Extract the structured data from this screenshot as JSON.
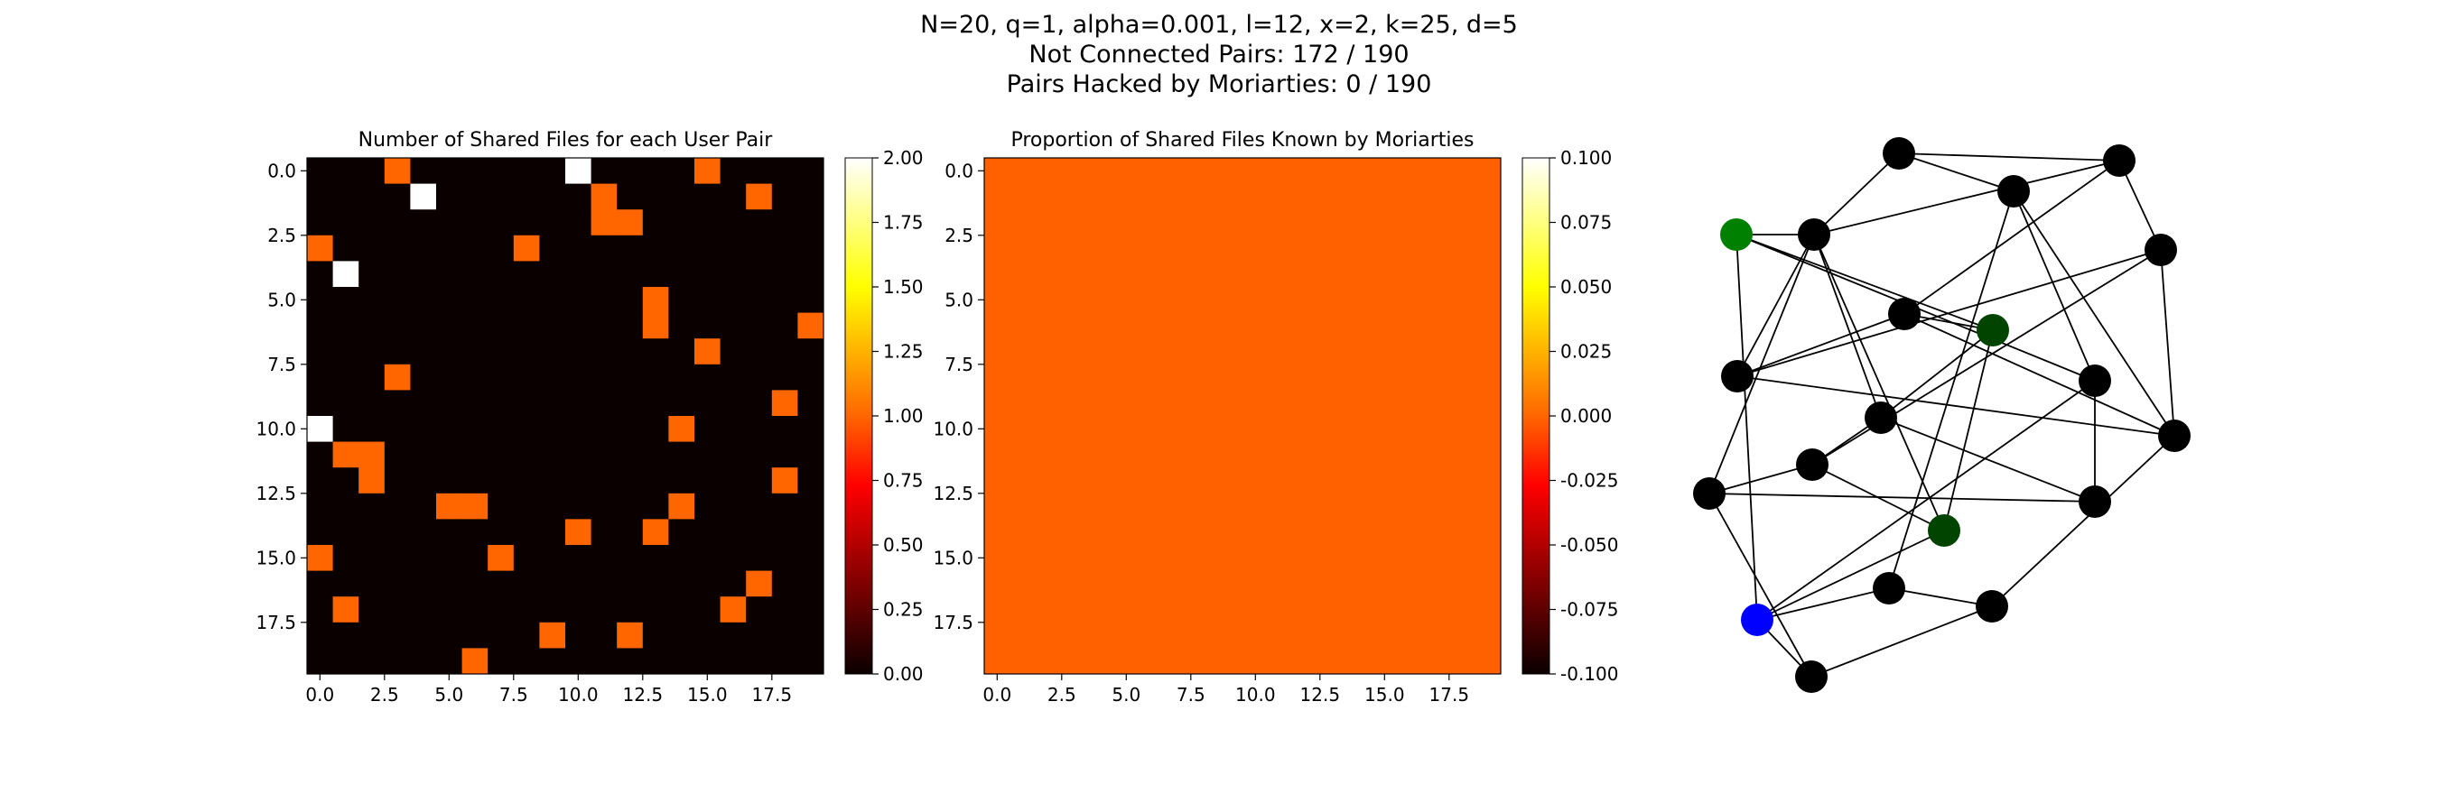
{
  "suptitle": {
    "line1": "N=20, q=1, alpha=0.001, l=12, x=2, k=25, d=5",
    "line2": "Not Connected Pairs: 172 / 190",
    "line3": "Pairs Hacked by Moriarties: 0 / 190"
  },
  "colors": {
    "cmap_stops": [
      "#0b0000",
      "#ff0000",
      "#ff6600",
      "#ffff00",
      "#ffffff"
    ],
    "uniform_fill": "#ff6000",
    "node_default": "#000000",
    "node_moriarty": "#004400",
    "node_green": "#008000",
    "node_blue": "#0000ff",
    "edge": "#000000"
  },
  "chart_data": [
    {
      "type": "heatmap",
      "title": "Number of Shared Files for each User Pair",
      "xlabel": "",
      "ylabel": "",
      "n": 20,
      "xticks": [
        "0.0",
        "2.5",
        "5.0",
        "7.5",
        "10.0",
        "12.5",
        "15.0",
        "17.5"
      ],
      "yticks": [
        "0.0",
        "2.5",
        "5.0",
        "7.5",
        "10.0",
        "12.5",
        "15.0",
        "17.5"
      ],
      "vmin": 0,
      "vmax": 2,
      "colorbar_ticks": [
        "0.00",
        "0.25",
        "0.50",
        "0.75",
        "1.00",
        "1.25",
        "1.50",
        "1.75",
        "2.00"
      ],
      "matrix": [
        [
          0,
          0,
          0,
          1,
          0,
          0,
          0,
          0,
          0,
          0,
          2,
          0,
          0,
          0,
          0,
          1,
          0,
          0,
          0,
          0
        ],
        [
          0,
          0,
          0,
          0,
          2,
          0,
          0,
          0,
          0,
          0,
          0,
          1,
          0,
          0,
          0,
          0,
          0,
          1,
          0,
          0
        ],
        [
          0,
          0,
          0,
          0,
          0,
          0,
          0,
          0,
          0,
          0,
          0,
          1,
          1,
          0,
          0,
          0,
          0,
          0,
          0,
          0
        ],
        [
          1,
          0,
          0,
          0,
          0,
          0,
          0,
          0,
          1,
          0,
          0,
          0,
          0,
          0,
          0,
          0,
          0,
          0,
          0,
          0
        ],
        [
          0,
          2,
          0,
          0,
          0,
          0,
          0,
          0,
          0,
          0,
          0,
          0,
          0,
          0,
          0,
          0,
          0,
          0,
          0,
          0
        ],
        [
          0,
          0,
          0,
          0,
          0,
          0,
          0,
          0,
          0,
          0,
          0,
          0,
          0,
          1,
          0,
          0,
          0,
          0,
          0,
          0
        ],
        [
          0,
          0,
          0,
          0,
          0,
          0,
          0,
          0,
          0,
          0,
          0,
          0,
          0,
          1,
          0,
          0,
          0,
          0,
          0,
          1
        ],
        [
          0,
          0,
          0,
          0,
          0,
          0,
          0,
          0,
          0,
          0,
          0,
          0,
          0,
          0,
          0,
          1,
          0,
          0,
          0,
          0
        ],
        [
          0,
          0,
          0,
          1,
          0,
          0,
          0,
          0,
          0,
          0,
          0,
          0,
          0,
          0,
          0,
          0,
          0,
          0,
          0,
          0
        ],
        [
          0,
          0,
          0,
          0,
          0,
          0,
          0,
          0,
          0,
          0,
          0,
          0,
          0,
          0,
          0,
          0,
          0,
          0,
          1,
          0
        ],
        [
          2,
          0,
          0,
          0,
          0,
          0,
          0,
          0,
          0,
          0,
          0,
          0,
          0,
          0,
          1,
          0,
          0,
          0,
          0,
          0
        ],
        [
          0,
          1,
          1,
          0,
          0,
          0,
          0,
          0,
          0,
          0,
          0,
          0,
          0,
          0,
          0,
          0,
          0,
          0,
          0,
          0
        ],
        [
          0,
          0,
          1,
          0,
          0,
          0,
          0,
          0,
          0,
          0,
          0,
          0,
          0,
          0,
          0,
          0,
          0,
          0,
          1,
          0
        ],
        [
          0,
          0,
          0,
          0,
          0,
          1,
          1,
          0,
          0,
          0,
          0,
          0,
          0,
          0,
          1,
          0,
          0,
          0,
          0,
          0
        ],
        [
          0,
          0,
          0,
          0,
          0,
          0,
          0,
          0,
          0,
          0,
          1,
          0,
          0,
          1,
          0,
          0,
          0,
          0,
          0,
          0
        ],
        [
          1,
          0,
          0,
          0,
          0,
          0,
          0,
          1,
          0,
          0,
          0,
          0,
          0,
          0,
          0,
          0,
          0,
          0,
          0,
          0
        ],
        [
          0,
          0,
          0,
          0,
          0,
          0,
          0,
          0,
          0,
          0,
          0,
          0,
          0,
          0,
          0,
          0,
          0,
          1,
          0,
          0
        ],
        [
          0,
          1,
          0,
          0,
          0,
          0,
          0,
          0,
          0,
          0,
          0,
          0,
          0,
          0,
          0,
          0,
          1,
          0,
          0,
          0
        ],
        [
          0,
          0,
          0,
          0,
          0,
          0,
          0,
          0,
          0,
          1,
          0,
          0,
          1,
          0,
          0,
          0,
          0,
          0,
          0,
          0
        ],
        [
          0,
          0,
          0,
          0,
          0,
          0,
          1,
          0,
          0,
          0,
          0,
          0,
          0,
          0,
          0,
          0,
          0,
          0,
          0,
          0
        ]
      ]
    },
    {
      "type": "heatmap",
      "title": "Proportion of Shared Files Known by Moriarties",
      "xlabel": "",
      "ylabel": "",
      "n": 20,
      "xticks": [
        "0.0",
        "2.5",
        "5.0",
        "7.5",
        "10.0",
        "12.5",
        "15.0",
        "17.5"
      ],
      "yticks": [
        "0.0",
        "2.5",
        "5.0",
        "7.5",
        "10.0",
        "12.5",
        "15.0",
        "17.5"
      ],
      "uniform_value": 0,
      "vmin": -0.1,
      "vmax": 0.1,
      "colorbar_ticks": [
        "-0.100",
        "-0.075",
        "-0.050",
        "-0.025",
        "0.000",
        "0.025",
        "0.050",
        "0.075",
        "0.100"
      ]
    },
    {
      "type": "network",
      "title": "",
      "nodes": [
        {
          "id": 0,
          "color": "black"
        },
        {
          "id": 1,
          "color": "black"
        },
        {
          "id": 2,
          "color": "green"
        },
        {
          "id": 3,
          "color": "black"
        },
        {
          "id": 4,
          "color": "black"
        },
        {
          "id": 5,
          "color": "black"
        },
        {
          "id": 6,
          "color": "moriarty"
        },
        {
          "id": 7,
          "color": "black"
        },
        {
          "id": 8,
          "color": "black"
        },
        {
          "id": 9,
          "color": "black"
        },
        {
          "id": 10,
          "color": "black"
        },
        {
          "id": 11,
          "color": "black"
        },
        {
          "id": 12,
          "color": "black"
        },
        {
          "id": 13,
          "color": "moriarty"
        },
        {
          "id": 14,
          "color": "black"
        },
        {
          "id": 15,
          "color": "black"
        },
        {
          "id": 16,
          "color": "blue"
        },
        {
          "id": 17,
          "color": "black"
        },
        {
          "id": 18,
          "color": "black"
        },
        {
          "id": 19,
          "color": "black"
        }
      ],
      "edges": [
        [
          0,
          1
        ],
        [
          0,
          4
        ],
        [
          1,
          5
        ],
        [
          0,
          3
        ],
        [
          1,
          3
        ],
        [
          2,
          3
        ],
        [
          2,
          6
        ],
        [
          2,
          10
        ],
        [
          2,
          16
        ],
        [
          3,
          9
        ],
        [
          3,
          12
        ],
        [
          3,
          13
        ],
        [
          4,
          10
        ],
        [
          4,
          14
        ],
        [
          5,
          11
        ],
        [
          5,
          14
        ],
        [
          1,
          7
        ],
        [
          6,
          7
        ],
        [
          6,
          9
        ],
        [
          6,
          13
        ],
        [
          7,
          8
        ],
        [
          5,
          8
        ],
        [
          8,
          14
        ],
        [
          9,
          11
        ],
        [
          9,
          15
        ],
        [
          10,
          15
        ],
        [
          10,
          16
        ],
        [
          11,
          12
        ],
        [
          11,
          13
        ],
        [
          12,
          18
        ],
        [
          13,
          16
        ],
        [
          14,
          19
        ],
        [
          16,
          17
        ],
        [
          17,
          19
        ],
        [
          18,
          19
        ],
        [
          16,
          18
        ],
        [
          7,
          14
        ],
        [
          12,
          15
        ],
        [
          3,
          8
        ],
        [
          4,
          17
        ]
      ]
    }
  ]
}
